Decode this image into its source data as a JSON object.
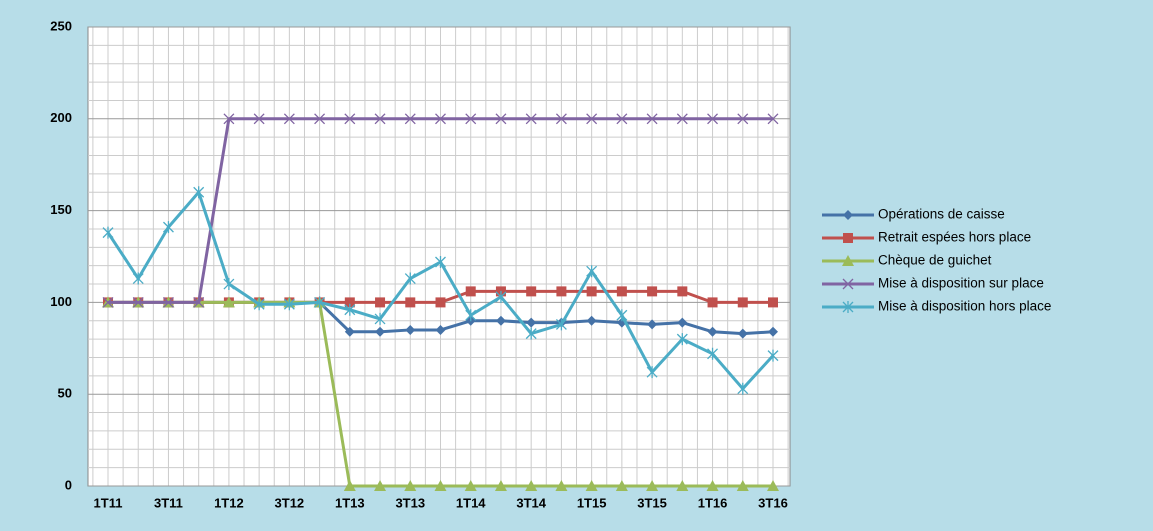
{
  "chart_data": {
    "type": "line",
    "categories": [
      "1T11",
      null,
      "3T11",
      null,
      "1T12",
      null,
      "3T12",
      null,
      "1T13",
      null,
      "3T13",
      null,
      "1T14",
      null,
      "3T14",
      null,
      "1T15",
      null,
      "3T15",
      null,
      "1T16",
      null,
      "3T16"
    ],
    "ylim": [
      0,
      250
    ],
    "yticks": [
      0,
      50,
      100,
      150,
      200,
      250
    ],
    "grid": true,
    "legend": "right",
    "series": [
      {
        "name": "Opérations de caisse",
        "color": "#4572a7",
        "marker": "diamond",
        "values": [
          100,
          100,
          100,
          100,
          100,
          100,
          100,
          100,
          84,
          84,
          85,
          85,
          90,
          90,
          89,
          89,
          90,
          89,
          88,
          89,
          84,
          83,
          84
        ]
      },
      {
        "name": "Retrait espées hors place",
        "color": "#c0504d",
        "marker": "square",
        "values": [
          100,
          100,
          100,
          100,
          100,
          100,
          100,
          100,
          100,
          100,
          100,
          100,
          106,
          106,
          106,
          106,
          106,
          106,
          106,
          106,
          100,
          100,
          100
        ]
      },
      {
        "name": "Chèque de guichet",
        "color": "#9bbb59",
        "marker": "triangle",
        "values": [
          100,
          100,
          100,
          100,
          100,
          100,
          100,
          100,
          0,
          0,
          0,
          0,
          0,
          0,
          0,
          0,
          0,
          0,
          0,
          0,
          0,
          0,
          0
        ]
      },
      {
        "name": "Mise à disposition sur place",
        "color": "#8064a2",
        "marker": "x",
        "values": [
          100,
          100,
          100,
          100,
          200,
          200,
          200,
          200,
          200,
          200,
          200,
          200,
          200,
          200,
          200,
          200,
          200,
          200,
          200,
          200,
          200,
          200,
          200
        ]
      },
      {
        "name": "Mise à disposition hors place",
        "color": "#4bacc6",
        "marker": "star",
        "values": [
          138,
          113,
          141,
          160,
          110,
          99,
          99,
          100,
          96,
          91,
          113,
          122,
          93,
          103,
          83,
          88,
          117,
          93,
          62,
          80,
          72,
          53,
          71
        ]
      }
    ]
  }
}
